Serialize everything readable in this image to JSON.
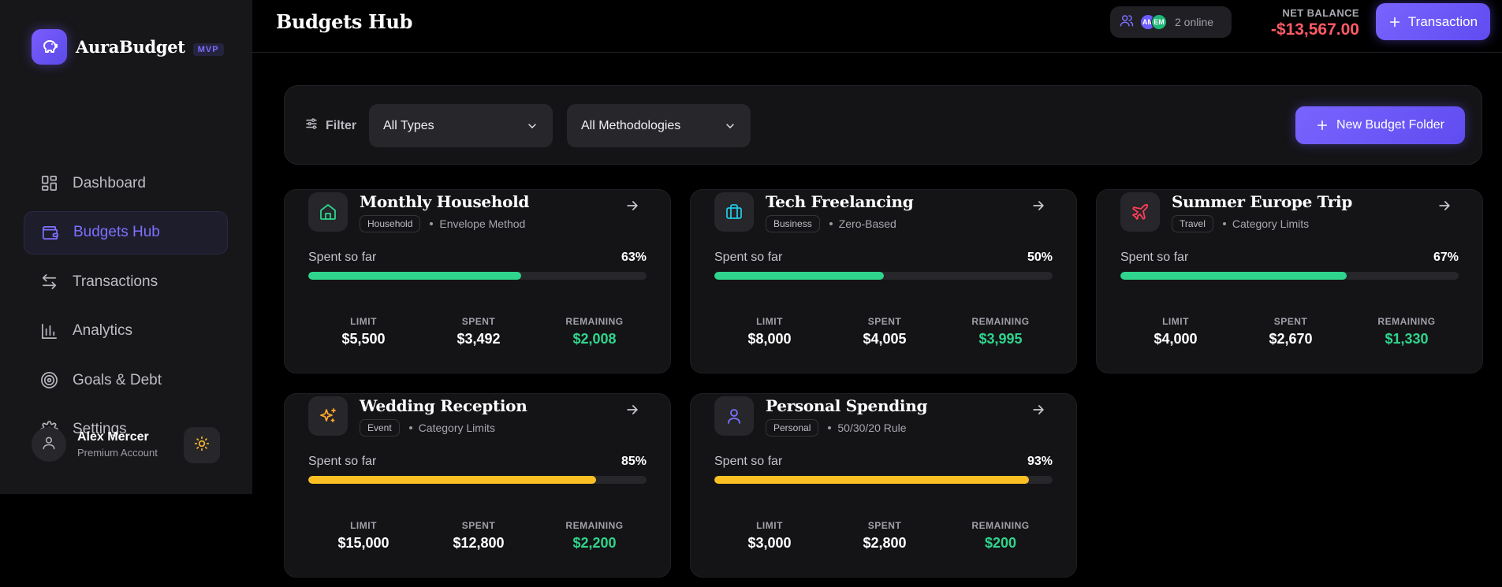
{
  "app": {
    "name": "AuraBudget",
    "badge": "MVP"
  },
  "sidebar": {
    "items": [
      {
        "label": "Dashboard",
        "icon": "dashboard-grid-icon",
        "active": false
      },
      {
        "label": "Budgets Hub",
        "icon": "wallet-icon",
        "active": true
      },
      {
        "label": "Transactions",
        "icon": "arrows-swap-icon",
        "active": false
      },
      {
        "label": "Analytics",
        "icon": "bar-chart-icon",
        "active": false
      },
      {
        "label": "Goals & Debt",
        "icon": "target-icon",
        "active": false
      },
      {
        "label": "Settings",
        "icon": "gear-icon",
        "active": false
      }
    ],
    "user": {
      "name": "Alex Mercer",
      "plan": "Premium Account"
    }
  },
  "header": {
    "title": "Budgets Hub",
    "online": {
      "avatars": [
        "AM",
        "EM"
      ],
      "text": "2 online"
    },
    "net_balance_label": "NET BALANCE",
    "net_balance_value": "-$13,567.00",
    "transaction_button": "Transaction"
  },
  "filters": {
    "label": "Filter",
    "type_select": "All Types",
    "methodology_select": "All Methodologies",
    "new_folder_button": "New Budget Folder"
  },
  "stat_labels": {
    "limit": "LIMIT",
    "spent": "SPENT",
    "remaining": "REMAINING"
  },
  "spent_label": "Spent so far",
  "budgets": [
    {
      "title": "Monthly Household",
      "tag": "Household",
      "method": "Envelope Method",
      "icon": "home-icon",
      "icon_color": "#2fd58c",
      "percent": "63%",
      "progress": 0.63,
      "bar_color": "#2fd58c",
      "limit": "$5,500",
      "spent": "$3,492",
      "remaining": "$2,008"
    },
    {
      "title": "Tech Freelancing",
      "tag": "Business",
      "method": "Zero-Based",
      "icon": "briefcase-icon",
      "icon_color": "#1fc8e0",
      "percent": "50%",
      "progress": 0.5,
      "bar_color": "#2fd58c",
      "limit": "$8,000",
      "spent": "$4,005",
      "remaining": "$3,995"
    },
    {
      "title": "Summer Europe Trip",
      "tag": "Travel",
      "method": "Category Limits",
      "icon": "plane-icon",
      "icon_color": "#ff3d5a",
      "percent": "67%",
      "progress": 0.67,
      "bar_color": "#2fd58c",
      "limit": "$4,000",
      "spent": "$2,670",
      "remaining": "$1,330"
    },
    {
      "title": "Wedding Reception",
      "tag": "Event",
      "method": "Category Limits",
      "icon": "sparkles-icon",
      "icon_color": "#ffa62b",
      "percent": "85%",
      "progress": 0.85,
      "bar_color": "#fbbf24",
      "limit": "$15,000",
      "spent": "$12,800",
      "remaining": "$2,200"
    },
    {
      "title": "Personal Spending",
      "tag": "Personal",
      "method": "50/30/20 Rule",
      "icon": "user-icon",
      "icon_color": "#7d71ff",
      "percent": "93%",
      "progress": 0.93,
      "bar_color": "#fbbf24",
      "limit": "$3,000",
      "spent": "$2,800",
      "remaining": "$200"
    }
  ]
}
